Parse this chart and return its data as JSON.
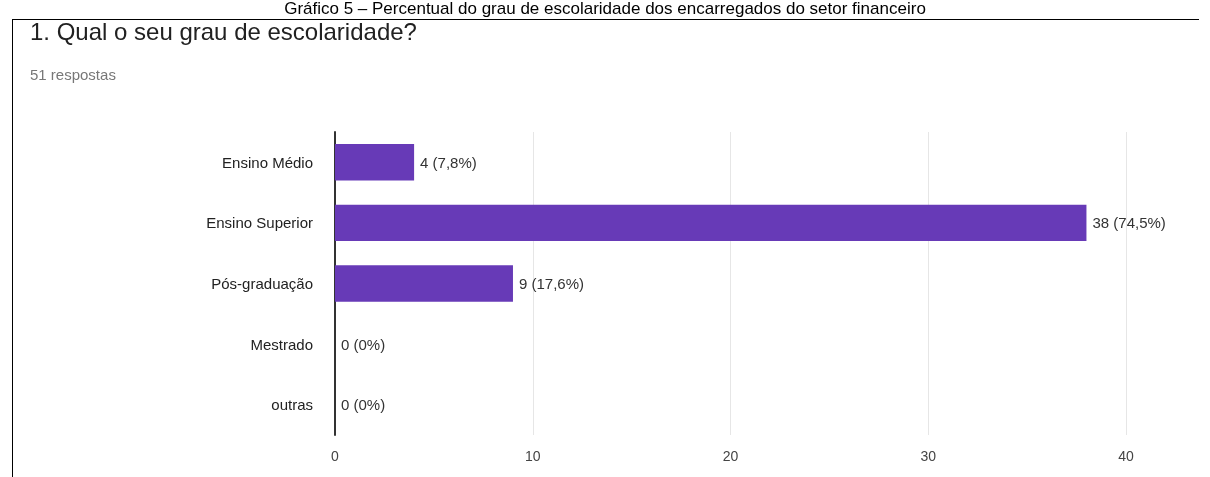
{
  "chart_data": {
    "type": "bar",
    "orientation": "horizontal",
    "title": "1. Qual o seu grau de escolaridade?",
    "subtitle": "51 respostas",
    "annotations": [
      "Gráfico 5 – Percentual do grau de escolaridade dos encarregados do setor financeiro"
    ],
    "categories": [
      "Ensino Médio",
      "Ensino Superior",
      "Pós-graduação",
      "Mestrado",
      "outras"
    ],
    "values": [
      4,
      38,
      9,
      0,
      0
    ],
    "value_labels": [
      "4 (7,8%)",
      "38 (74,5%)",
      "9 (17,6%)",
      "0 (0%)",
      "0 (0%)"
    ],
    "color": "#673ab7",
    "xlim": [
      0,
      40
    ],
    "xticks": [
      0,
      10,
      20,
      30,
      40
    ],
    "grid": "x"
  }
}
